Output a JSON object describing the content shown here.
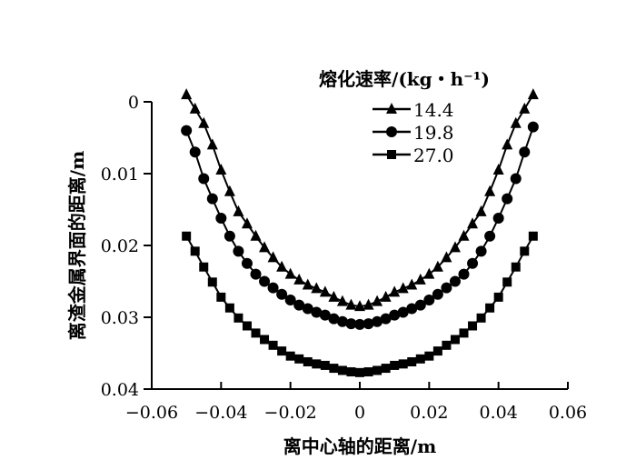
{
  "chart_data": {
    "type": "line",
    "title": "",
    "xlabel": "离中心轴的距离/m",
    "ylabel": "离渣金属界面的距离/m",
    "xlim": [
      -0.06,
      0.06
    ],
    "ylim": [
      0,
      0.04
    ],
    "y_inverted": true,
    "grid": false,
    "xticks": [
      "−0.06",
      "−0.04",
      "−0.02",
      "0",
      "0.02",
      "0.04",
      "0.06"
    ],
    "xtick_values": [
      -0.06,
      -0.04,
      -0.02,
      0,
      0.02,
      0.04,
      0.06
    ],
    "yticks": [
      "0",
      "0.01",
      "0.02",
      "0.03",
      "0.04"
    ],
    "ytick_values": [
      0,
      0.01,
      0.02,
      0.03,
      0.04
    ],
    "legend": {
      "title": "熔化速率/(kg・h⁻¹)",
      "placement": "top-right"
    },
    "x": [
      -0.05,
      -0.0475,
      -0.045,
      -0.0425,
      -0.04,
      -0.0375,
      -0.035,
      -0.0325,
      -0.03,
      -0.0275,
      -0.025,
      -0.0225,
      -0.02,
      -0.0175,
      -0.015,
      -0.0125,
      -0.01,
      -0.0075,
      -0.005,
      -0.0025,
      0,
      0.0025,
      0.005,
      0.0075,
      0.01,
      0.0125,
      0.015,
      0.0175,
      0.02,
      0.0225,
      0.025,
      0.0275,
      0.03,
      0.0325,
      0.035,
      0.0375,
      0.04,
      0.0425,
      0.045,
      0.0475,
      0.05
    ],
    "series": [
      {
        "name": "14.4",
        "marker": "triangle",
        "color": "#000000",
        "values": [
          -0.001,
          0.001,
          0.003,
          0.006,
          0.0095,
          0.0125,
          0.0153,
          0.017,
          0.0187,
          0.0203,
          0.0217,
          0.023,
          0.024,
          0.0248,
          0.0255,
          0.026,
          0.0265,
          0.0272,
          0.0278,
          0.0283,
          0.0285,
          0.0283,
          0.0278,
          0.0272,
          0.0265,
          0.026,
          0.0255,
          0.0248,
          0.024,
          0.023,
          0.0217,
          0.0203,
          0.0187,
          0.017,
          0.0153,
          0.0125,
          0.0095,
          0.006,
          0.003,
          0.001,
          -0.001
        ]
      },
      {
        "name": "19.8",
        "marker": "circle",
        "color": "#000000",
        "values": [
          0.004,
          0.007,
          0.0107,
          0.0135,
          0.0162,
          0.0187,
          0.0208,
          0.0225,
          0.024,
          0.025,
          0.0259,
          0.0268,
          0.0276,
          0.0283,
          0.0288,
          0.0293,
          0.0297,
          0.0302,
          0.0306,
          0.0309,
          0.031,
          0.0309,
          0.0306,
          0.0302,
          0.0297,
          0.0293,
          0.0288,
          0.0283,
          0.0276,
          0.0268,
          0.0259,
          0.025,
          0.024,
          0.0225,
          0.0208,
          0.0187,
          0.0162,
          0.0135,
          0.0107,
          0.007,
          0.0035
        ]
      },
      {
        "name": "27.0",
        "marker": "square",
        "color": "#000000",
        "values": [
          0.0187,
          0.0208,
          0.023,
          0.0251,
          0.0272,
          0.0287,
          0.0301,
          0.0312,
          0.0322,
          0.0331,
          0.0339,
          0.0347,
          0.0354,
          0.0358,
          0.0362,
          0.0365,
          0.0367,
          0.0371,
          0.0374,
          0.0376,
          0.0377,
          0.0376,
          0.0374,
          0.0371,
          0.0367,
          0.0365,
          0.0362,
          0.0358,
          0.0354,
          0.0347,
          0.0339,
          0.0331,
          0.0322,
          0.0312,
          0.0301,
          0.0287,
          0.0272,
          0.0251,
          0.023,
          0.0208,
          0.0187
        ]
      }
    ]
  }
}
